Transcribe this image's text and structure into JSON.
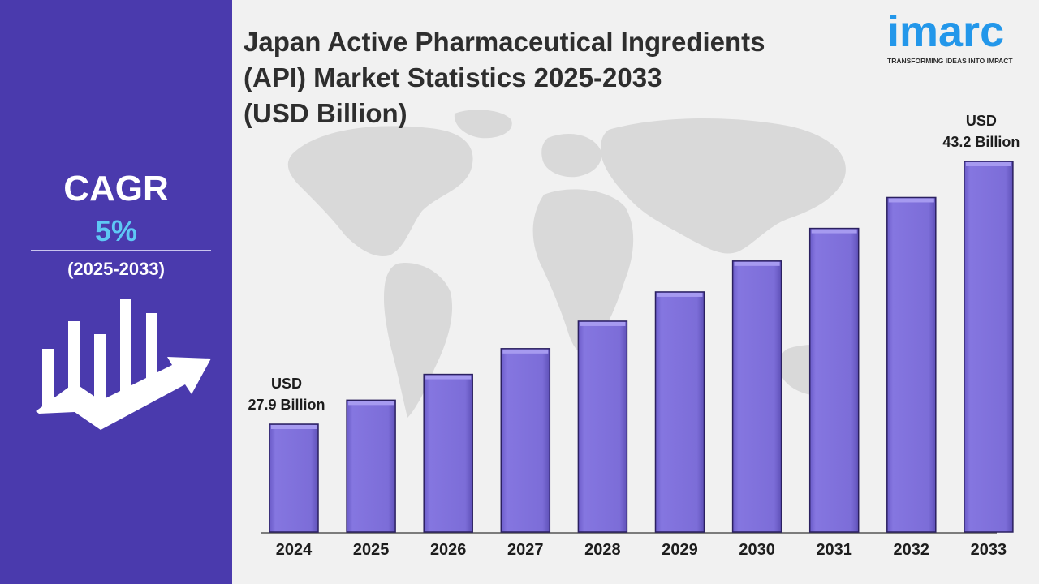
{
  "sidebar": {
    "cagr_label": "CAGR",
    "cagr_value": "5%",
    "cagr_period": "(2025-2033)",
    "icon": "growth-chart-icon",
    "background_color": "#4a3aad",
    "accent_color": "#5ec8f5"
  },
  "title_lines": [
    "Japan Active Pharmaceutical Ingredients",
    "(API) Market Statistics 2025-2033",
    "(USD Billion)"
  ],
  "logo": {
    "wordmark": "imarc",
    "tagline": "TRANSFORMING IDEAS INTO IMPACT",
    "color": "#2397ea"
  },
  "chart_data": {
    "type": "bar",
    "title": "Japan Active Pharmaceutical Ingredients (API) Market Statistics 2025-2033 (USD Billion)",
    "xlabel": "",
    "ylabel": "",
    "categories": [
      "2024",
      "2025",
      "2026",
      "2027",
      "2028",
      "2029",
      "2030",
      "2031",
      "2032",
      "2033"
    ],
    "values": [
      27.9,
      29.3,
      30.8,
      32.3,
      33.9,
      35.6,
      37.4,
      39.3,
      41.1,
      43.2
    ],
    "grid": false,
    "legend": "none",
    "bar_color": "#7e6fd9",
    "annotations": [
      {
        "category": "2024",
        "lines": [
          "USD",
          "27.9 Billion"
        ]
      },
      {
        "category": "2033",
        "lines": [
          "USD",
          "43.2 Billion"
        ]
      }
    ]
  }
}
